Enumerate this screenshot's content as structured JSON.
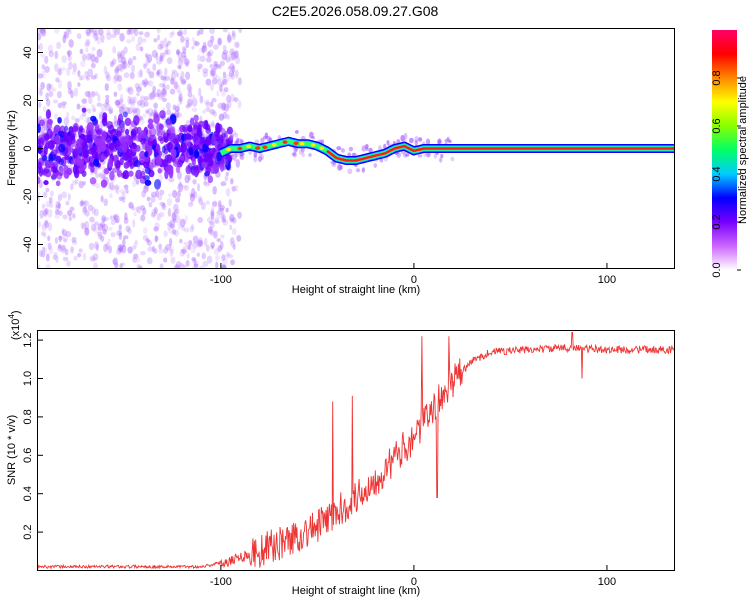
{
  "title": "C2E5.2026.058.09.27.G08",
  "chart_data": [
    {
      "type": "heatmap",
      "name": "spectrogram",
      "xlabel": "Height of straight line (km)",
      "ylabel": "Frequency (Hz)",
      "xlim": [
        -195,
        135
      ],
      "ylim": [
        -50,
        50
      ],
      "xticks": [
        -100,
        0,
        100
      ],
      "yticks": [
        -40,
        -20,
        0,
        20,
        40
      ],
      "carrier_track": [
        {
          "x": -100,
          "y": -2
        },
        {
          "x": -95,
          "y": 0
        },
        {
          "x": -90,
          "y": 0
        },
        {
          "x": -85,
          "y": 1
        },
        {
          "x": -80,
          "y": 0
        },
        {
          "x": -75,
          "y": 1
        },
        {
          "x": -70,
          "y": 2
        },
        {
          "x": -65,
          "y": 3
        },
        {
          "x": -60,
          "y": 2
        },
        {
          "x": -55,
          "y": 2
        },
        {
          "x": -50,
          "y": 1
        },
        {
          "x": -45,
          "y": -1
        },
        {
          "x": -40,
          "y": -4
        },
        {
          "x": -35,
          "y": -5
        },
        {
          "x": -30,
          "y": -5
        },
        {
          "x": -25,
          "y": -4
        },
        {
          "x": -20,
          "y": -3
        },
        {
          "x": -15,
          "y": -2
        },
        {
          "x": -10,
          "y": 0
        },
        {
          "x": -5,
          "y": 1
        },
        {
          "x": 0,
          "y": -1
        },
        {
          "x": 5,
          "y": 0
        },
        {
          "x": 10,
          "y": 0
        },
        {
          "x": 15,
          "y": 0
        },
        {
          "x": 135,
          "y": 0
        }
      ],
      "colorbar": {
        "label": "Normalized spectral amplitude",
        "range": [
          0,
          1
        ],
        "ticks": [
          "0.0",
          "0.2",
          "0.4",
          "0.6",
          "0.8"
        ],
        "colors": [
          "#ffffff",
          "#cc66ff",
          "#7700ff",
          "#0000ff",
          "#00ccff",
          "#00ff66",
          "#88ff00",
          "#ffff00",
          "#ff8800",
          "#ff0000",
          "#ff0066"
        ]
      }
    },
    {
      "type": "line",
      "name": "snr",
      "xlabel": "Height of straight line (km)",
      "ylabel": "SNR (10 * v/v)",
      "yscale_label": "(x10",
      "yscale_exp": "4",
      "yscale_close": ")",
      "xlim": [
        -195,
        135
      ],
      "ylim": [
        0,
        1.25
      ],
      "xticks": [
        -100,
        0,
        100
      ],
      "yticks": [
        0.2,
        0.4,
        0.6,
        0.8,
        1.0,
        1.2
      ],
      "ytick_labels": [
        "0.2",
        "0.4",
        "0.6",
        "0.8",
        "1.0",
        "1.2"
      ],
      "color": "#ee3333",
      "trend": [
        {
          "x": -195,
          "y": 0.02
        },
        {
          "x": -110,
          "y": 0.02
        },
        {
          "x": -100,
          "y": 0.04
        },
        {
          "x": -90,
          "y": 0.07
        },
        {
          "x": -80,
          "y": 0.1
        },
        {
          "x": -70,
          "y": 0.14
        },
        {
          "x": -60,
          "y": 0.18
        },
        {
          "x": -50,
          "y": 0.23
        },
        {
          "x": -40,
          "y": 0.3
        },
        {
          "x": -30,
          "y": 0.38
        },
        {
          "x": -20,
          "y": 0.47
        },
        {
          "x": -10,
          "y": 0.58
        },
        {
          "x": 0,
          "y": 0.7
        },
        {
          "x": 10,
          "y": 0.84
        },
        {
          "x": 20,
          "y": 0.98
        },
        {
          "x": 30,
          "y": 1.09
        },
        {
          "x": 40,
          "y": 1.14
        },
        {
          "x": 60,
          "y": 1.15
        },
        {
          "x": 80,
          "y": 1.16
        },
        {
          "x": 100,
          "y": 1.15
        },
        {
          "x": 135,
          "y": 1.15
        }
      ],
      "spikes": [
        {
          "x": -42,
          "y": 0.88
        },
        {
          "x": -32,
          "y": 0.91
        },
        {
          "x": 4,
          "y": 1.22
        },
        {
          "x": 12,
          "y": 0.38
        },
        {
          "x": 18,
          "y": 1.22
        },
        {
          "x": 82,
          "y": 1.24
        },
        {
          "x": 87,
          "y": 1.0
        }
      ]
    }
  ]
}
